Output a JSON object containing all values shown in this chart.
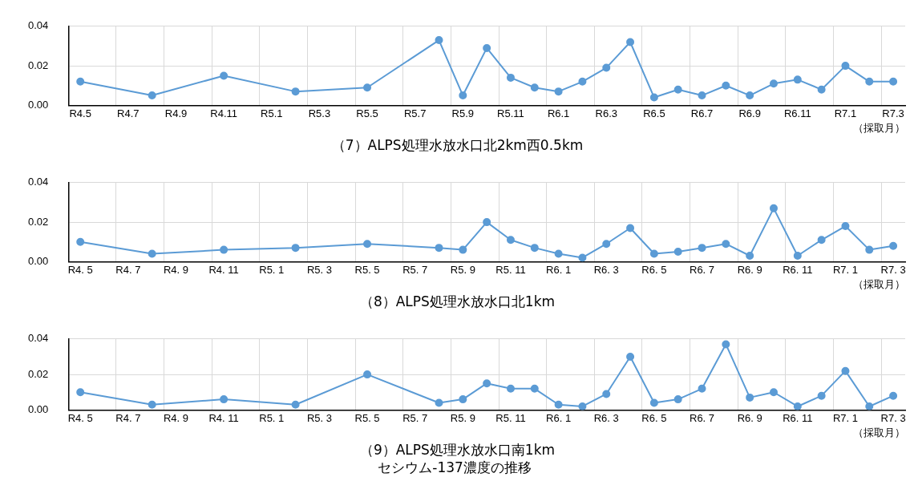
{
  "chart_data": [
    {
      "type": "line",
      "title": "（7）ALPS処理水放水口北2km西0.5km",
      "xlabel": "（採取月）",
      "categories": [
        "R4.5",
        null,
        "R4.7",
        null,
        "R4.9",
        null,
        "R4.11",
        null,
        "R5.1",
        null,
        "R5.3",
        null,
        "R5.5",
        null,
        "R5.7",
        null,
        "R5.9",
        null,
        "R5.11",
        null,
        "R6.1",
        null,
        "R6.3",
        null,
        "R6.5",
        null,
        "R6.7",
        null,
        "R6.9",
        null,
        "R6.11",
        null,
        "R7.1",
        null,
        "R7.3"
      ],
      "series": [
        {
          "color": "#5b9bd5",
          "values": [
            0.012,
            null,
            null,
            0.005,
            null,
            null,
            0.015,
            null,
            null,
            0.007,
            null,
            null,
            0.009,
            null,
            null,
            0.033,
            0.005,
            0.029,
            0.014,
            0.009,
            0.007,
            0.012,
            0.019,
            0.032,
            0.004,
            0.008,
            0.005,
            0.01,
            0.005,
            0.011,
            0.013,
            0.008,
            0.02,
            0.012,
            0.012
          ]
        }
      ],
      "ylim": [
        0,
        0.04
      ],
      "yticks": [
        {
          "value": 0,
          "label": "0.00"
        },
        {
          "value": 0.02,
          "label": "0.02"
        },
        {
          "value": 0.04,
          "label": "0.04"
        }
      ],
      "grid": true,
      "legend": false,
      "marker": "circle"
    },
    {
      "type": "line",
      "title": "（8）ALPS処理水放水口北1km",
      "xlabel": "（採取月）",
      "categories": [
        "R4. 5",
        null,
        "R4. 7",
        null,
        "R4. 9",
        null,
        "R4. 11",
        null,
        "R5. 1",
        null,
        "R5. 3",
        null,
        "R5. 5",
        null,
        "R5. 7",
        null,
        "R5. 9",
        null,
        "R5. 11",
        null,
        "R6. 1",
        null,
        "R6. 3",
        null,
        "R6. 5",
        null,
        "R6. 7",
        null,
        "R6. 9",
        null,
        "R6. 11",
        null,
        "R7. 1",
        null,
        "R7. 3"
      ],
      "series": [
        {
          "color": "#5b9bd5",
          "values": [
            0.01,
            null,
            null,
            0.004,
            null,
            null,
            0.006,
            null,
            null,
            0.007,
            null,
            null,
            0.009,
            null,
            null,
            0.007,
            0.006,
            0.02,
            0.011,
            0.007,
            0.004,
            0.002,
            0.009,
            0.017,
            0.004,
            0.005,
            0.007,
            0.009,
            0.003,
            0.027,
            0.003,
            0.011,
            0.018,
            0.006,
            0.008
          ]
        }
      ],
      "ylim": [
        0,
        0.04
      ],
      "yticks": [
        {
          "value": 0,
          "label": "0.00"
        },
        {
          "value": 0.02,
          "label": "0.02"
        },
        {
          "value": 0.04,
          "label": "0.04"
        }
      ],
      "grid": true,
      "legend": false,
      "marker": "circle"
    },
    {
      "type": "line",
      "title": "（9）ALPS処理水放水口南1km",
      "xlabel": "（採取月）",
      "annotations": [
        "セシウム-137濃度の推移"
      ],
      "categories": [
        "R4. 5",
        null,
        "R4. 7",
        null,
        "R4. 9",
        null,
        "R4. 11",
        null,
        "R5. 1",
        null,
        "R5. 3",
        null,
        "R5. 5",
        null,
        "R5. 7",
        null,
        "R5. 9",
        null,
        "R5. 11",
        null,
        "R6. 1",
        null,
        "R6. 3",
        null,
        "R6. 5",
        null,
        "R6. 7",
        null,
        "R6. 9",
        null,
        "R6. 11",
        null,
        "R7. 1",
        null,
        "R7. 3"
      ],
      "series": [
        {
          "color": "#5b9bd5",
          "values": [
            0.01,
            null,
            null,
            0.003,
            null,
            null,
            0.006,
            null,
            null,
            0.003,
            null,
            null,
            0.02,
            null,
            null,
            0.004,
            0.006,
            0.015,
            0.012,
            0.012,
            0.003,
            0.002,
            0.009,
            0.03,
            0.004,
            0.006,
            0.012,
            0.037,
            0.007,
            0.01,
            0.002,
            0.008,
            0.022,
            0.002,
            0.008
          ]
        }
      ],
      "ylim": [
        0,
        0.04
      ],
      "yticks": [
        {
          "value": 0,
          "label": "0.00"
        },
        {
          "value": 0.02,
          "label": "0.02"
        },
        {
          "value": 0.04,
          "label": "0.04"
        }
      ],
      "grid": true,
      "legend": false,
      "marker": "circle"
    }
  ]
}
